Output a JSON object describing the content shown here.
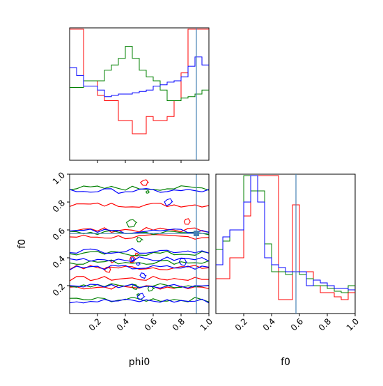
{
  "chart_data": {
    "type": "corner",
    "parameters": [
      "phi0",
      "f0"
    ],
    "truths": {
      "phi0": 0.91,
      "f0": 0.575
    },
    "truth_color": "#4682b4",
    "series": [
      {
        "name": "",
        "color": "#ff0000"
      },
      {
        "name": "",
        "color": "#008000"
      },
      {
        "name": "",
        "color": "#0000ff"
      }
    ],
    "panels": [
      {
        "id": "hist-phi0",
        "kind": "histogram",
        "param": "phi0",
        "x_range": [
          0.0,
          1.0
        ],
        "bin_edges": [
          0.0,
          0.05,
          0.1,
          0.15,
          0.2,
          0.25,
          0.3,
          0.35,
          0.4,
          0.45,
          0.5,
          0.55,
          0.6,
          0.65,
          0.7,
          0.75,
          0.8,
          0.85,
          0.9,
          0.95,
          1.0
        ],
        "y_range": [
          0,
          1.0
        ],
        "y_ticks_visible": false,
        "counts": {
          "red": [
            0.99,
            0.99,
            0.6,
            0.6,
            0.49,
            0.45,
            0.45,
            0.3,
            0.3,
            0.2,
            0.2,
            0.33,
            0.3,
            0.3,
            0.33,
            0.45,
            0.66,
            0.99,
            0.99,
            0.99
          ],
          "green": [
            0.55,
            0.55,
            0.6,
            0.6,
            0.6,
            0.68,
            0.72,
            0.77,
            0.86,
            0.77,
            0.68,
            0.63,
            0.6,
            0.53,
            0.45,
            0.45,
            0.47,
            0.48,
            0.5,
            0.53
          ],
          "blue": [
            0.7,
            0.64,
            0.56,
            0.56,
            0.53,
            0.48,
            0.49,
            0.5,
            0.5,
            0.51,
            0.52,
            0.53,
            0.56,
            0.57,
            0.59,
            0.6,
            0.63,
            0.71,
            0.78,
            0.72
          ]
        }
      },
      {
        "id": "contour-phi0-f0",
        "kind": "2d-contour",
        "x_param": "phi0",
        "y_param": "f0",
        "x_range": [
          0.0,
          1.0
        ],
        "y_range": [
          0.0,
          1.0
        ],
        "x_ticks": [
          0.2,
          0.4,
          0.6,
          0.8,
          1.0
        ],
        "y_ticks": [
          0.2,
          0.4,
          0.6,
          0.8,
          1.0
        ],
        "xlabel": "phi0",
        "ylabel": "f0",
        "contour_bands_f0": {
          "red": [
            0.19,
            0.25,
            0.33,
            0.55,
            0.6,
            0.78
          ],
          "green": [
            0.1,
            0.2,
            0.37,
            0.43,
            0.58,
            0.9
          ],
          "blue": [
            0.09,
            0.2,
            0.33,
            0.39,
            0.45,
            0.59,
            0.88
          ]
        }
      },
      {
        "id": "hist-f0",
        "kind": "histogram",
        "param": "f0",
        "x_range": [
          0.0,
          1.0
        ],
        "bin_edges": [
          0.0,
          0.05,
          0.1,
          0.15,
          0.2,
          0.25,
          0.3,
          0.35,
          0.4,
          0.45,
          0.5,
          0.55,
          0.6,
          0.65,
          0.7,
          0.75,
          0.8,
          0.85,
          0.9,
          0.95,
          1.0
        ],
        "y_range": [
          0,
          1.0
        ],
        "y_ticks_visible": false,
        "x_ticks": [
          0.2,
          0.4,
          0.6,
          0.8,
          1.0
        ],
        "xlabel": "f0",
        "counts": {
          "red": [
            0.25,
            0.25,
            0.4,
            0.4,
            0.7,
            0.99,
            0.99,
            0.99,
            0.99,
            0.1,
            0.1,
            0.78,
            0.3,
            0.3,
            0.2,
            0.15,
            0.15,
            0.12,
            0.1,
            0.15
          ],
          "green": [
            0.46,
            0.52,
            0.6,
            0.6,
            0.99,
            0.88,
            0.88,
            0.5,
            0.3,
            0.3,
            0.28,
            0.3,
            0.28,
            0.25,
            0.2,
            0.2,
            0.18,
            0.16,
            0.15,
            0.2
          ],
          "blue": [
            0.35,
            0.55,
            0.6,
            0.6,
            0.8,
            0.99,
            0.8,
            0.4,
            0.35,
            0.33,
            0.3,
            0.3,
            0.3,
            0.2,
            0.24,
            0.22,
            0.2,
            0.18,
            0.18,
            0.17
          ]
        }
      }
    ]
  }
}
